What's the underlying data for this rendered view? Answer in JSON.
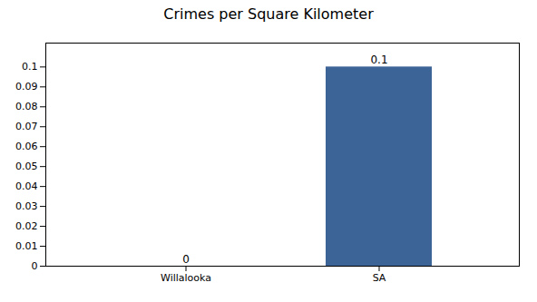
{
  "chart_data": {
    "type": "bar",
    "title": "Crimes per Square Kilometer",
    "categories": [
      "Willalooka",
      "SA"
    ],
    "values": [
      0,
      0.1
    ],
    "color": "#3d6496",
    "data_labels": true,
    "ylim": [
      0,
      0.112
    ],
    "yticks": [
      0,
      0.01,
      0.02,
      0.03,
      0.04,
      0.05,
      0.06,
      0.07,
      0.08,
      0.09,
      0.1
    ],
    "grid": false
  }
}
